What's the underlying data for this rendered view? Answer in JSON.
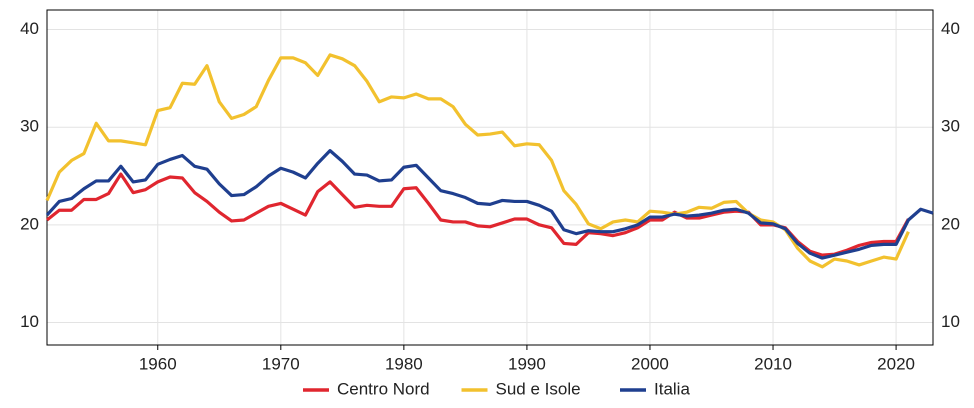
{
  "chart_data": {
    "type": "line",
    "x": [
      1951,
      1952,
      1953,
      1954,
      1955,
      1956,
      1957,
      1958,
      1959,
      1960,
      1961,
      1962,
      1963,
      1964,
      1965,
      1966,
      1967,
      1968,
      1969,
      1970,
      1971,
      1972,
      1973,
      1974,
      1975,
      1976,
      1977,
      1978,
      1979,
      1980,
      1981,
      1982,
      1983,
      1984,
      1985,
      1986,
      1987,
      1988,
      1989,
      1990,
      1991,
      1992,
      1993,
      1994,
      1995,
      1996,
      1997,
      1998,
      1999,
      2000,
      2001,
      2002,
      2003,
      2004,
      2005,
      2006,
      2007,
      2008,
      2009,
      2010,
      2011,
      2012,
      2013,
      2014,
      2015,
      2016,
      2017,
      2018,
      2019,
      2020,
      2021,
      2022,
      2023
    ],
    "series": [
      {
        "name": "Centro Nord",
        "color": "#e0262f",
        "values": [
          20.5,
          21.5,
          21.5,
          22.6,
          22.6,
          23.2,
          25.2,
          23.3,
          23.6,
          24.4,
          24.9,
          24.8,
          23.3,
          22.4,
          21.3,
          20.4,
          20.5,
          21.2,
          21.9,
          22.2,
          21.6,
          21.0,
          23.4,
          24.4,
          23.1,
          21.8,
          22.0,
          21.9,
          21.9,
          23.7,
          23.8,
          22.2,
          20.5,
          20.3,
          20.3,
          19.9,
          19.8,
          20.2,
          20.6,
          20.6,
          20.0,
          19.7,
          18.1,
          18.0,
          19.2,
          19.1,
          18.9,
          19.2,
          19.7,
          20.5,
          20.5,
          21.3,
          20.7,
          20.7,
          21.0,
          21.3,
          21.4,
          21.3,
          20.0,
          20.0,
          19.7,
          18.3,
          17.3,
          16.9,
          17.0,
          17.4,
          17.9,
          18.2,
          18.3,
          18.3,
          20.6,
          null,
          null
        ]
      },
      {
        "name": "Sud e Isole",
        "color": "#f2c12e",
        "values": [
          22.5,
          25.4,
          26.6,
          27.3,
          30.4,
          28.6,
          28.6,
          28.4,
          28.2,
          31.7,
          32.0,
          34.5,
          34.4,
          36.3,
          32.6,
          30.9,
          31.3,
          32.1,
          34.8,
          37.1,
          37.1,
          36.6,
          35.3,
          37.4,
          37.0,
          36.3,
          34.7,
          32.6,
          33.1,
          33.0,
          33.4,
          32.9,
          32.9,
          32.1,
          30.3,
          29.2,
          29.3,
          29.5,
          28.1,
          28.3,
          28.2,
          26.6,
          23.5,
          22.1,
          20.1,
          19.6,
          20.3,
          20.5,
          20.3,
          21.4,
          21.3,
          21.1,
          21.3,
          21.8,
          21.7,
          22.3,
          22.4,
          21.2,
          20.5,
          20.3,
          19.5,
          17.6,
          16.3,
          15.7,
          16.5,
          16.3,
          15.9,
          16.3,
          16.7,
          16.5,
          19.3,
          null,
          null
        ]
      },
      {
        "name": "Italia",
        "color": "#1f3f8f",
        "values": [
          21.0,
          22.4,
          22.7,
          23.7,
          24.5,
          24.5,
          26.0,
          24.4,
          24.6,
          26.2,
          26.7,
          27.1,
          26.0,
          25.7,
          24.2,
          23.0,
          23.1,
          23.9,
          25.0,
          25.8,
          25.4,
          24.8,
          26.3,
          27.6,
          26.5,
          25.2,
          25.1,
          24.5,
          24.6,
          25.9,
          26.1,
          24.8,
          23.5,
          23.2,
          22.8,
          22.2,
          22.1,
          22.5,
          22.4,
          22.4,
          22.0,
          21.4,
          19.5,
          19.1,
          19.4,
          19.3,
          19.3,
          19.6,
          20.0,
          20.8,
          20.8,
          21.1,
          20.9,
          21.0,
          21.2,
          21.5,
          21.6,
          21.2,
          20.2,
          20.1,
          19.6,
          18.1,
          17.1,
          16.6,
          16.9,
          17.2,
          17.5,
          17.9,
          18.0,
          18.0,
          20.5,
          21.6,
          21.2
        ]
      }
    ],
    "xlim": [
      1951,
      2023
    ],
    "xticks": [
      1960,
      1970,
      1980,
      1990,
      2000,
      2010,
      2020
    ],
    "ylim": [
      7.7,
      42
    ],
    "yticks": [
      10,
      20,
      30,
      40
    ],
    "grid": true,
    "legend": "bottom"
  }
}
